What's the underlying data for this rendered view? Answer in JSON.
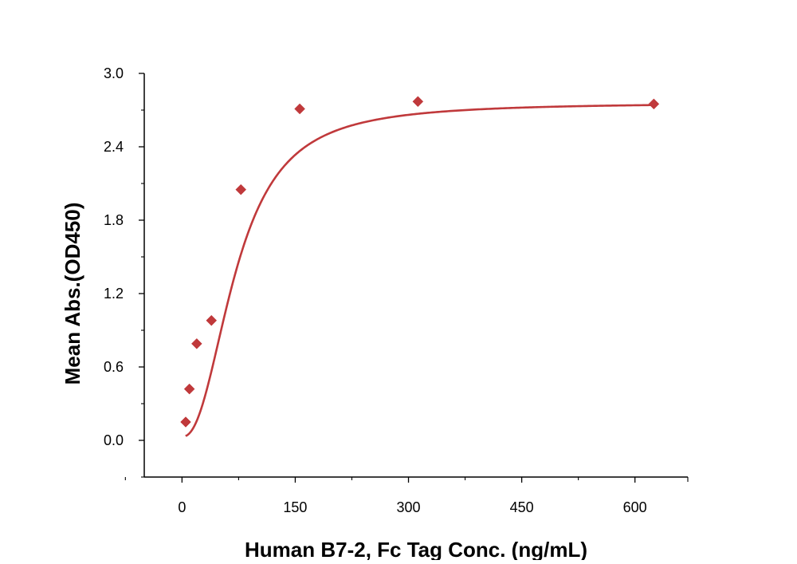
{
  "chart_data": {
    "type": "scatter",
    "title": "",
    "xlabel": "Human B7-2, Fc Tag Conc. (ng/mL)",
    "ylabel": "Mean Abs.(OD450)",
    "xlim": [
      -50,
      670
    ],
    "ylim": [
      -0.3,
      3.0
    ],
    "xticks": [
      0,
      150,
      300,
      450,
      600
    ],
    "xtick_labels": [
      "0",
      "150",
      "300",
      "450",
      "600"
    ],
    "yticks": [
      0.0,
      0.6,
      1.2,
      1.8,
      2.4,
      3.0
    ],
    "ytick_labels": [
      "0.0",
      "0.6",
      "1.2",
      "1.8",
      "2.4",
      "3.0"
    ],
    "grid": false,
    "legend": "none",
    "series": [
      {
        "marker": "diamond",
        "color": "#c0393b",
        "x": [
          4.9,
          9.8,
          19.5,
          39,
          78,
          156,
          312.5,
          625
        ],
        "y": [
          0.15,
          0.42,
          0.79,
          0.98,
          2.05,
          2.71,
          2.77,
          2.75
        ]
      }
    ],
    "fit_curve": {
      "type": "4PL",
      "color": "#c0393b",
      "bottom": 0.03,
      "top": 2.76,
      "ec50": 72,
      "hill": 2.3
    }
  }
}
